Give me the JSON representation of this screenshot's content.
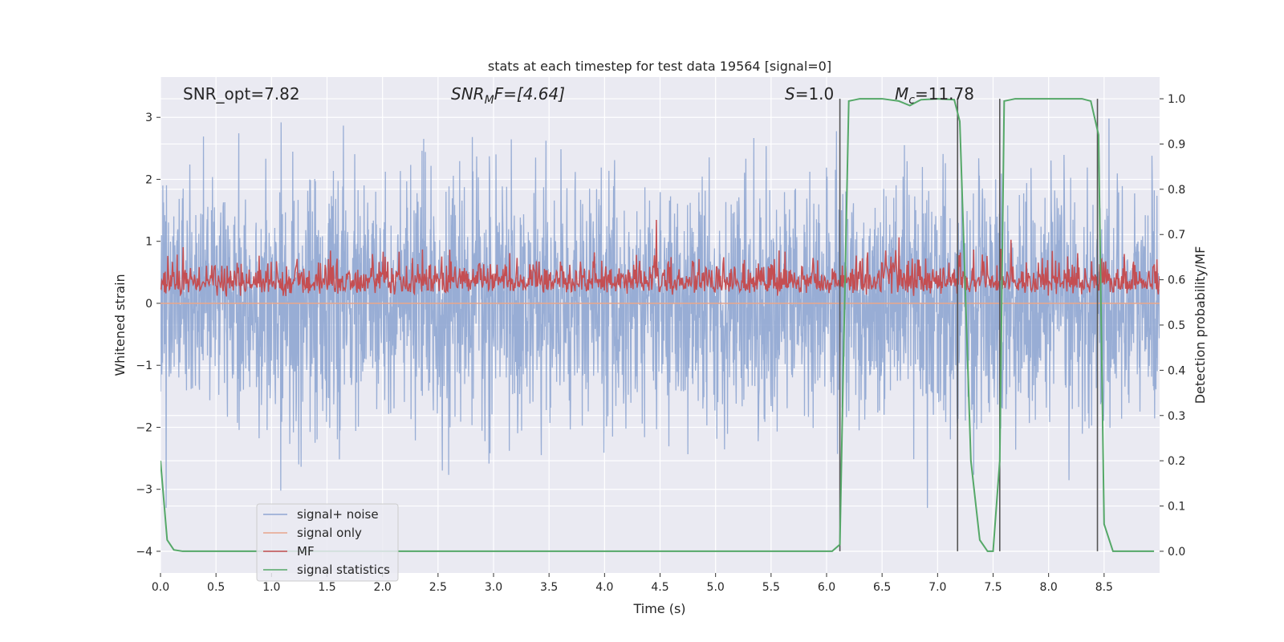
{
  "chart_data": {
    "type": "line",
    "title": "stats at each timestep for test data 19564 [signal=0]",
    "xlabel": "Time (s)",
    "ylabel_left": "Whitened strain",
    "ylabel_right": "Detection probability/MF",
    "xlim": [
      0.0,
      9.0
    ],
    "ylim_left": [
      -4.35,
      3.65
    ],
    "ylim_right": [
      -0.048,
      1.048
    ],
    "x_ticks": [
      0.0,
      0.5,
      1.0,
      1.5,
      2.0,
      2.5,
      3.0,
      3.5,
      4.0,
      4.5,
      5.0,
      5.5,
      6.0,
      6.5,
      7.0,
      7.5,
      8.0,
      8.5
    ],
    "x_tick_labels": [
      "0.0",
      "0.5",
      "1.0",
      "1.5",
      "2.0",
      "2.5",
      "3.0",
      "3.5",
      "4.0",
      "4.5",
      "5.0",
      "5.5",
      "6.0",
      "6.5",
      "7.0",
      "7.5",
      "8.0",
      "8.5"
    ],
    "y_left_ticks": [
      3,
      2,
      1,
      0,
      -1,
      -2,
      -3,
      -4
    ],
    "y_left_tick_labels": [
      "3",
      "2",
      "1",
      "0",
      "−1",
      "−2",
      "−3",
      "−4"
    ],
    "y_right_ticks": [
      1.0,
      0.9,
      0.8,
      0.7,
      0.6,
      0.5,
      0.4,
      0.3,
      0.2,
      0.1,
      0.0
    ],
    "y_right_tick_labels": [
      "1.0",
      "0.9",
      "0.8",
      "0.7",
      "0.6",
      "0.5",
      "0.4",
      "0.3",
      "0.2",
      "0.1",
      "0.0"
    ],
    "grid": true,
    "legend_position": "lower-left",
    "annotations": {
      "snr_opt": "SNR_opt=7.82",
      "snr_mf_label": "SNR",
      "snr_mf_sub": "M",
      "snr_mf_rest": "F=[4.64]",
      "s_label": "S",
      "s_rest": "=1.0",
      "mc_label": "M",
      "mc_sub": "c",
      "mc_rest": "=11.78"
    },
    "series": [
      {
        "name": "signal+ noise",
        "color": "#8fa6d1",
        "axis": "left",
        "description": "whitened noisy strain, approx. within [-3.3, 3.2]"
      },
      {
        "name": "signal only",
        "color": "#e8a58b",
        "axis": "left",
        "values_constant": 0.0
      },
      {
        "name": "MF",
        "color": "#c44e52",
        "axis": "right",
        "description": "matched-filter output, approx. 0.55-0.75"
      },
      {
        "name": "signal statistics",
        "color": "#55a868",
        "axis": "right",
        "x": [
          0.0,
          0.06,
          0.12,
          0.2,
          0.5,
          1.0,
          2.0,
          3.0,
          4.0,
          5.0,
          5.6,
          6.05,
          6.12,
          6.15,
          6.2,
          6.3,
          6.5,
          6.65,
          6.75,
          6.85,
          7.0,
          7.15,
          7.2,
          7.3,
          7.38,
          7.45,
          7.5,
          7.56,
          7.6,
          7.7,
          8.3,
          8.38,
          8.45,
          8.5,
          8.58,
          8.7,
          8.95
        ],
        "y": [
          0.2,
          0.025,
          0.003,
          0.0,
          0.0,
          0.0,
          0.0,
          0.0,
          0.0,
          0.0,
          0.0,
          0.0,
          0.015,
          0.4,
          0.995,
          1.0,
          1.0,
          0.995,
          0.985,
          0.998,
          1.0,
          0.998,
          0.95,
          0.2,
          0.025,
          0.0,
          0.0,
          0.2,
          0.995,
          1.0,
          1.0,
          0.995,
          0.92,
          0.06,
          0.0,
          0.0,
          0.0
        ]
      }
    ],
    "vertical_lines_x": [
      6.12,
      7.18,
      7.56,
      8.44
    ],
    "vertical_line_color": "#555555"
  }
}
